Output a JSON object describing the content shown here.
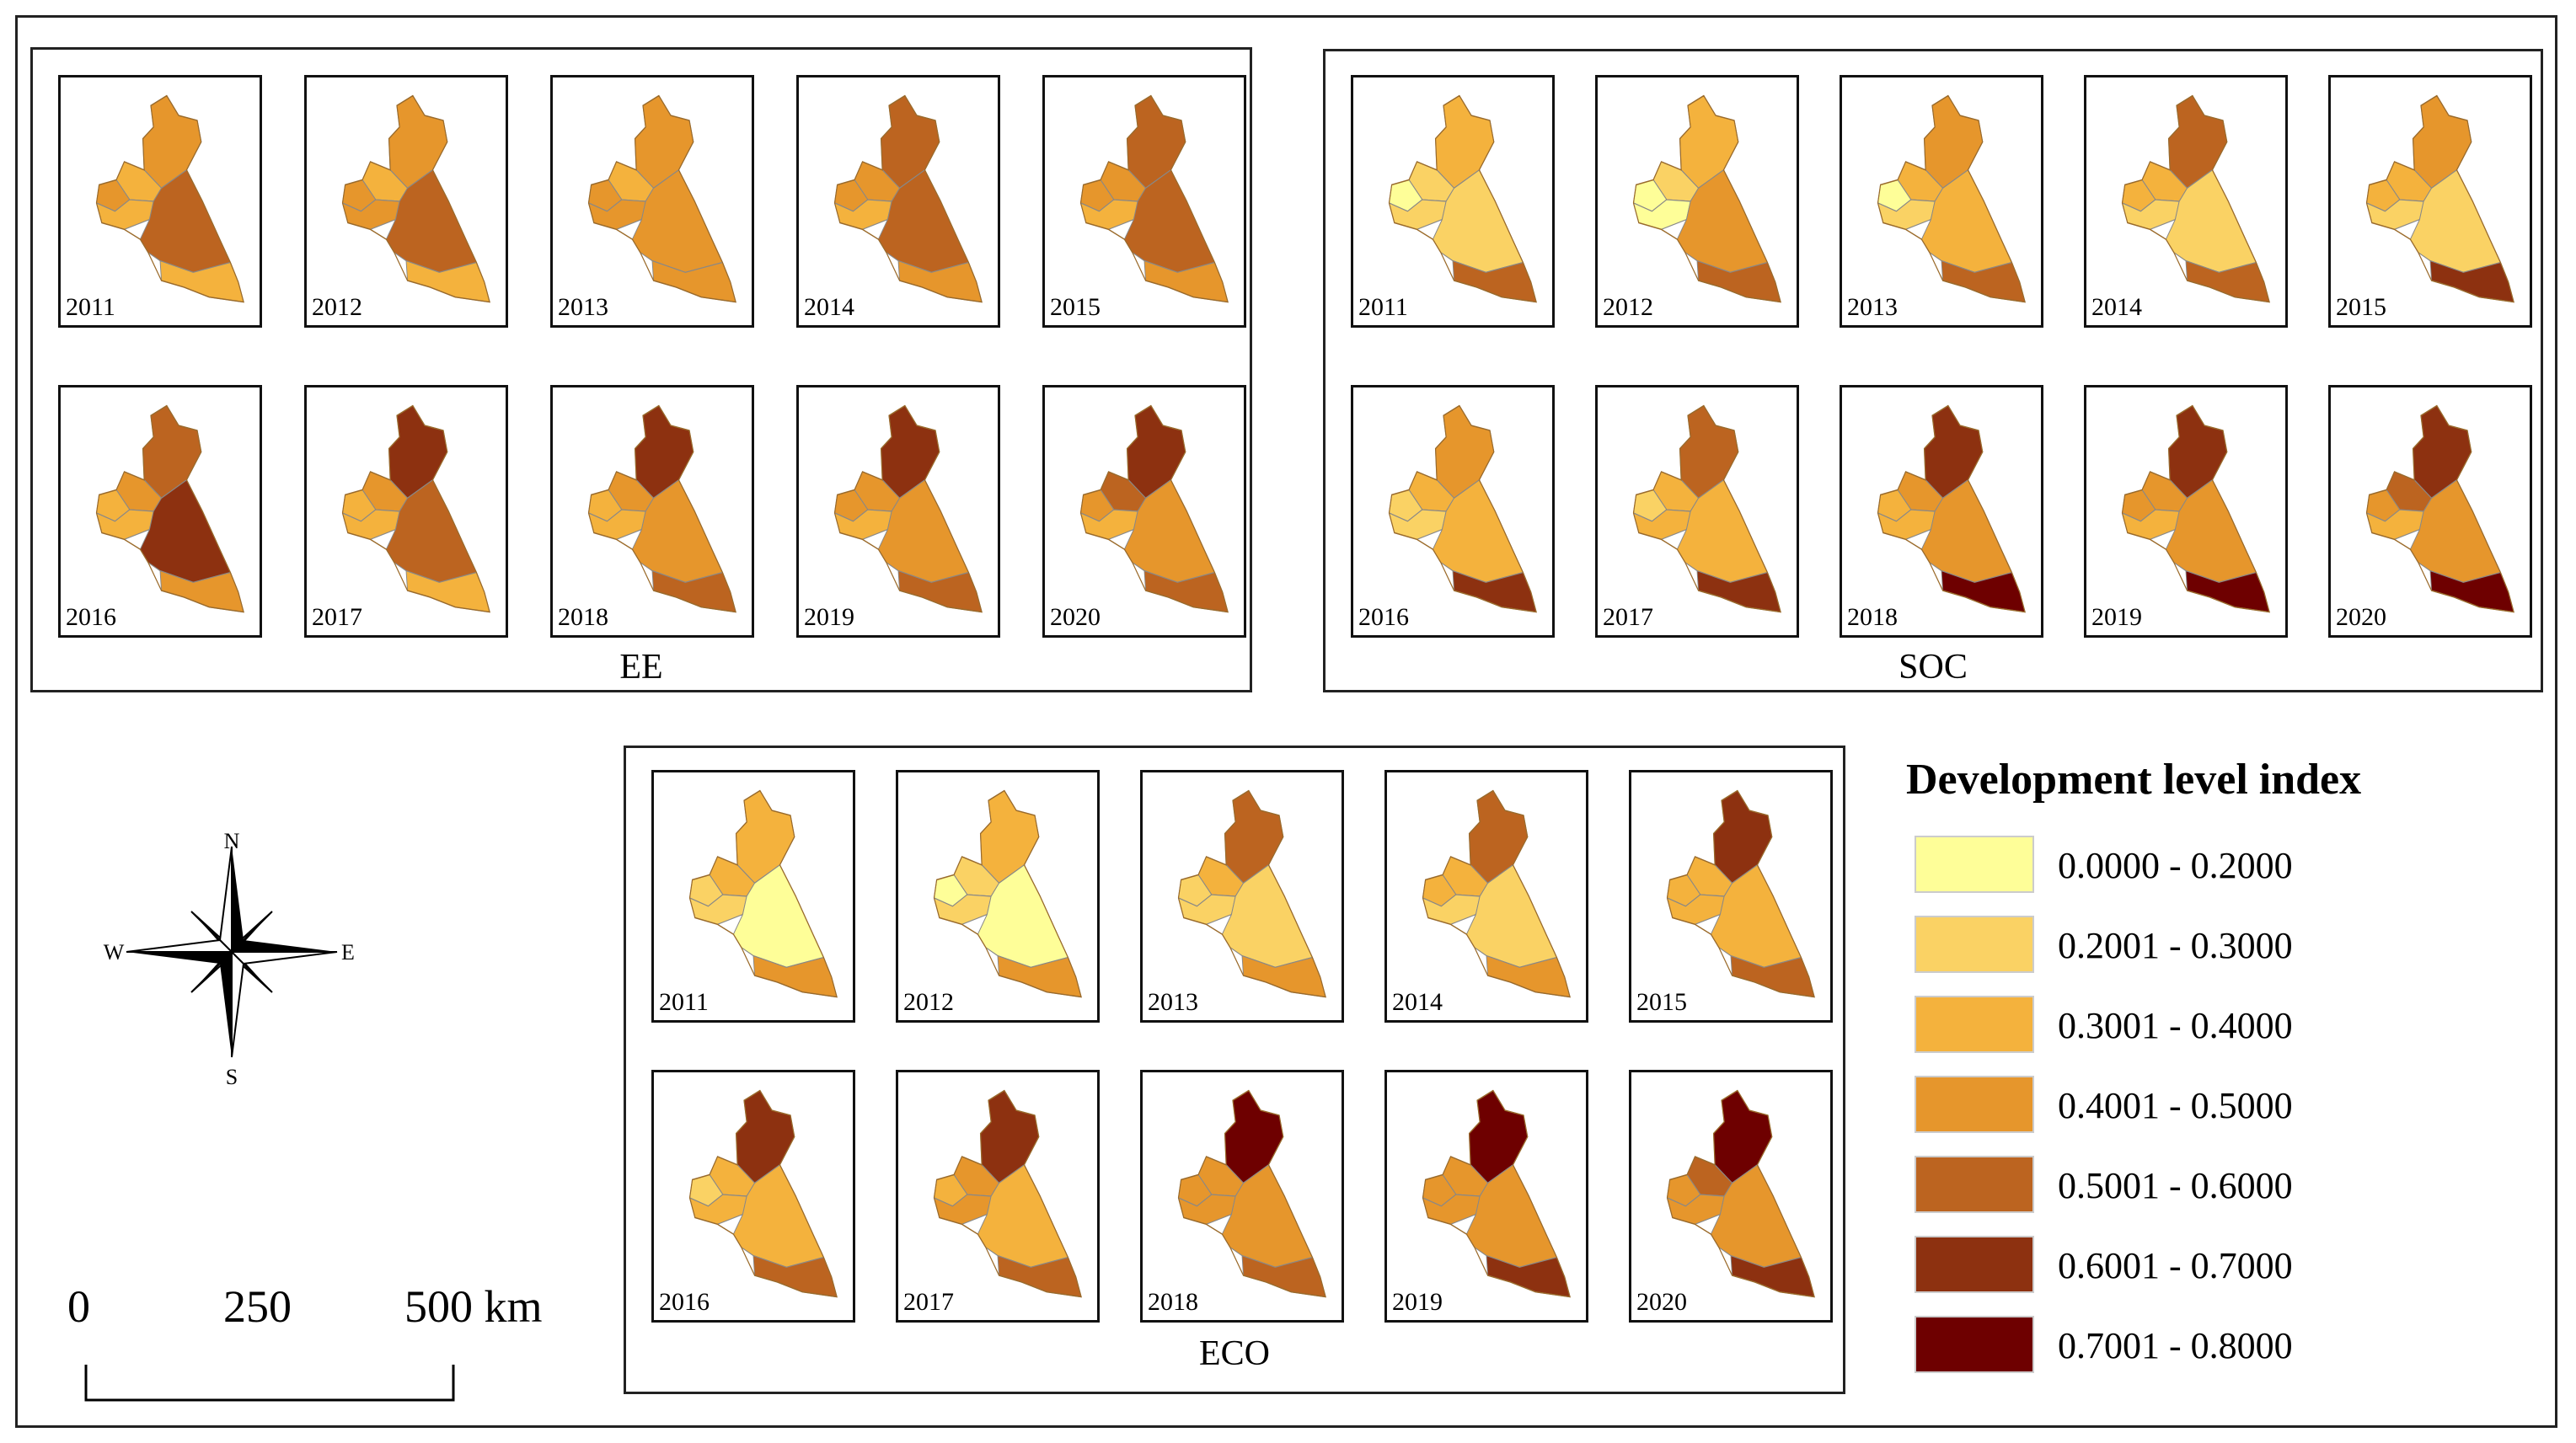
{
  "colors": {
    "class_0": "#fefe98",
    "class_1": "#fad264",
    "class_2": "#f4b23d",
    "class_3": "#e6962c",
    "class_4": "#bc6420",
    "class_5": "#8d3110",
    "class_6": "#6e0000",
    "border": "#888888"
  },
  "panels": [
    {
      "label": "EE",
      "maps": [
        {
          "year": "2011",
          "regions": [
            3,
            2,
            3,
            2,
            4,
            2
          ]
        },
        {
          "year": "2012",
          "regions": [
            3,
            2,
            3,
            3,
            4,
            2
          ]
        },
        {
          "year": "2013",
          "regions": [
            3,
            2,
            3,
            3,
            3,
            3
          ]
        },
        {
          "year": "2014",
          "regions": [
            4,
            3,
            3,
            2,
            4,
            3
          ]
        },
        {
          "year": "2015",
          "regions": [
            4,
            3,
            3,
            2,
            4,
            3
          ]
        },
        {
          "year": "2016",
          "regions": [
            4,
            3,
            2,
            2,
            5,
            3
          ]
        },
        {
          "year": "2017",
          "regions": [
            5,
            3,
            2,
            2,
            4,
            2
          ]
        },
        {
          "year": "2018",
          "regions": [
            5,
            3,
            2,
            2,
            3,
            4
          ]
        },
        {
          "year": "2019",
          "regions": [
            5,
            3,
            3,
            2,
            3,
            4
          ]
        },
        {
          "year": "2020",
          "regions": [
            5,
            4,
            3,
            2,
            3,
            4
          ]
        }
      ]
    },
    {
      "label": "SOC",
      "maps": [
        {
          "year": "2011",
          "regions": [
            2,
            1,
            0,
            1,
            1,
            4
          ]
        },
        {
          "year": "2012",
          "regions": [
            2,
            1,
            0,
            0,
            3,
            4
          ]
        },
        {
          "year": "2013",
          "regions": [
            3,
            2,
            0,
            1,
            2,
            4
          ]
        },
        {
          "year": "2014",
          "regions": [
            4,
            2,
            2,
            1,
            1,
            4
          ]
        },
        {
          "year": "2015",
          "regions": [
            3,
            2,
            2,
            1,
            1,
            5
          ]
        },
        {
          "year": "2016",
          "regions": [
            3,
            2,
            1,
            1,
            2,
            5
          ]
        },
        {
          "year": "2017",
          "regions": [
            4,
            2,
            1,
            2,
            2,
            5
          ]
        },
        {
          "year": "2018",
          "regions": [
            5,
            3,
            2,
            2,
            3,
            6
          ]
        },
        {
          "year": "2019",
          "regions": [
            5,
            3,
            3,
            2,
            3,
            6
          ]
        },
        {
          "year": "2020",
          "regions": [
            5,
            4,
            3,
            2,
            3,
            6
          ]
        }
      ]
    },
    {
      "label": "ECO",
      "maps": [
        {
          "year": "2011",
          "regions": [
            2,
            2,
            1,
            1,
            0,
            3
          ]
        },
        {
          "year": "2012",
          "regions": [
            2,
            1,
            0,
            1,
            0,
            3
          ]
        },
        {
          "year": "2013",
          "regions": [
            4,
            2,
            1,
            1,
            1,
            3
          ]
        },
        {
          "year": "2014",
          "regions": [
            4,
            2,
            2,
            1,
            1,
            3
          ]
        },
        {
          "year": "2015",
          "regions": [
            5,
            2,
            2,
            2,
            2,
            4
          ]
        },
        {
          "year": "2016",
          "regions": [
            5,
            2,
            1,
            2,
            2,
            4
          ]
        },
        {
          "year": "2017",
          "regions": [
            5,
            3,
            2,
            3,
            2,
            4
          ]
        },
        {
          "year": "2018",
          "regions": [
            6,
            3,
            3,
            3,
            3,
            4
          ]
        },
        {
          "year": "2019",
          "regions": [
            6,
            3,
            3,
            3,
            3,
            5
          ]
        },
        {
          "year": "2020",
          "regions": [
            6,
            4,
            3,
            3,
            3,
            5
          ]
        }
      ]
    }
  ],
  "legend": {
    "title": "Development level index",
    "items": [
      {
        "label": "0.0000 - 0.2000",
        "color": "#fefe98"
      },
      {
        "label": "0.2001 - 0.3000",
        "color": "#fad264"
      },
      {
        "label": "0.3001 - 0.4000",
        "color": "#f4b23d"
      },
      {
        "label": "0.4001 - 0.5000",
        "color": "#e6962c"
      },
      {
        "label": "0.5001 - 0.6000",
        "color": "#bc6420"
      },
      {
        "label": "0.6001 - 0.7000",
        "color": "#8d3110"
      },
      {
        "label": "0.7001 - 0.8000",
        "color": "#6e0000"
      }
    ]
  },
  "compass": {
    "n": "N",
    "s": "S",
    "e": "E",
    "w": "W"
  },
  "scale_bar": {
    "tick_0": "0",
    "tick_1": "250",
    "tick_2": "500 km"
  }
}
